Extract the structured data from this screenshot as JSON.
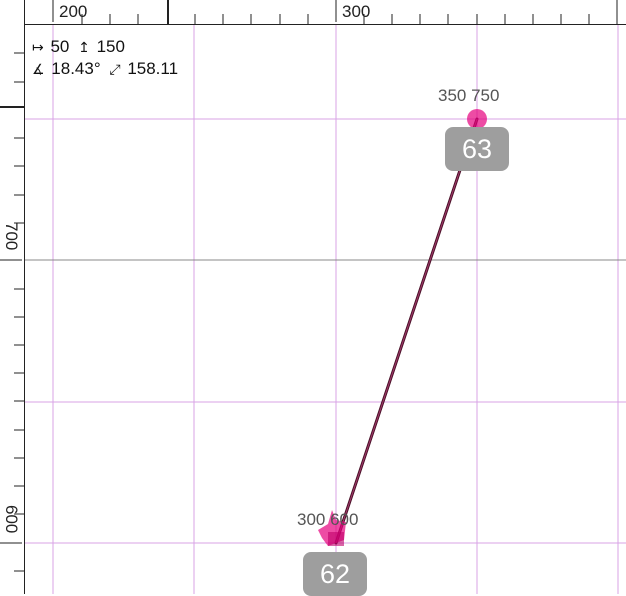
{
  "ruler_top": {
    "labels": [
      "200",
      "300"
    ]
  },
  "ruler_left": {
    "labels": [
      "700",
      "600"
    ]
  },
  "readout": {
    "dx_glyph": "↦",
    "dx": "50",
    "dy_glyph": "↥",
    "dy": "150",
    "angle_glyph": "∡",
    "angle": "18.43°",
    "length_glyph": "⤢",
    "length": "158.11"
  },
  "points": {
    "end": {
      "coord_label": "350 750",
      "index": "63"
    },
    "start": {
      "coord_label": "300 600",
      "index": "62"
    }
  },
  "colors": {
    "grid": "#d8a3e6",
    "line": "#4a1028",
    "handle": "#e6007e",
    "badge": "#9e9e9e"
  }
}
